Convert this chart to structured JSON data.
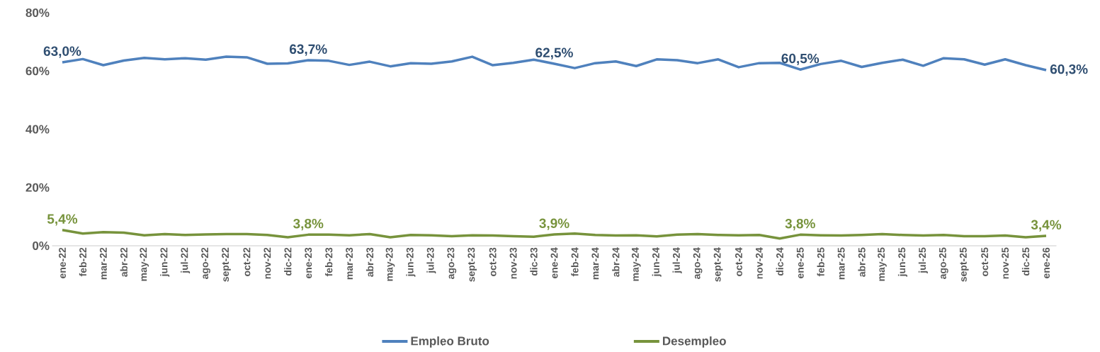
{
  "chart_data": {
    "type": "line",
    "categories": [
      "ene-22",
      "feb-22",
      "mar-22",
      "abr-22",
      "may-22",
      "jun-22",
      "jul-22",
      "ago-22",
      "sept-22",
      "oct-22",
      "nov-22",
      "dic-22",
      "ene-23",
      "feb-23",
      "mar-23",
      "abr-23",
      "may-23",
      "jun-23",
      "jul-23",
      "ago-23",
      "sept-23",
      "oct-23",
      "nov-23",
      "dic-23",
      "ene-24",
      "feb-24",
      "mar-24",
      "abr-24",
      "may-24",
      "jun-24",
      "jul-24",
      "ago-24",
      "sept-24",
      "oct-24",
      "nov-24",
      "dic-24",
      "ene-25",
      "feb-25",
      "mar-25",
      "abr-25",
      "may-25",
      "jun-25",
      "jul-25",
      "ago-25",
      "sept-25",
      "oct-25",
      "nov-25",
      "dic-25",
      "ene-26"
    ],
    "series": [
      {
        "name": "Empleo Bruto",
        "color": "#4f81bd",
        "values": [
          63.0,
          64.1,
          62.0,
          63.6,
          64.5,
          64.0,
          64.4,
          63.9,
          64.9,
          64.7,
          62.5,
          62.6,
          63.7,
          63.5,
          62.1,
          63.2,
          61.6,
          62.7,
          62.5,
          63.3,
          64.9,
          62.0,
          62.8,
          63.9,
          62.5,
          61.0,
          62.7,
          63.3,
          61.7,
          64.0,
          63.7,
          62.7,
          64.0,
          61.3,
          62.7,
          62.8,
          60.5,
          62.4,
          63.5,
          61.4,
          62.8,
          63.9,
          61.8,
          64.4,
          64.0,
          62.2,
          64.0,
          62.0,
          60.3
        ],
        "value_labels": [
          "63,0%",
          null,
          null,
          null,
          null,
          null,
          null,
          null,
          null,
          null,
          null,
          null,
          "63,7%",
          null,
          null,
          null,
          null,
          null,
          null,
          null,
          null,
          null,
          null,
          null,
          "62,5%",
          null,
          null,
          null,
          null,
          null,
          null,
          null,
          null,
          null,
          null,
          null,
          "60,5%",
          null,
          null,
          null,
          null,
          null,
          null,
          null,
          null,
          null,
          null,
          null,
          "60,3%"
        ]
      },
      {
        "name": "Desempleo",
        "color": "#77933c",
        "values": [
          5.4,
          4.2,
          4.7,
          4.5,
          3.6,
          4.0,
          3.7,
          3.9,
          4.0,
          4.0,
          3.7,
          2.9,
          3.8,
          3.8,
          3.6,
          4.0,
          2.9,
          3.7,
          3.6,
          3.3,
          3.6,
          3.5,
          3.3,
          3.1,
          3.9,
          4.2,
          3.7,
          3.5,
          3.6,
          3.2,
          3.8,
          4.0,
          3.7,
          3.6,
          3.7,
          2.5,
          3.8,
          3.6,
          3.5,
          3.7,
          4.0,
          3.7,
          3.5,
          3.7,
          3.3,
          3.3,
          3.5,
          2.9,
          3.4
        ],
        "value_labels": [
          "5,4%",
          null,
          null,
          null,
          null,
          null,
          null,
          null,
          null,
          null,
          null,
          null,
          "3,8%",
          null,
          null,
          null,
          null,
          null,
          null,
          null,
          null,
          null,
          null,
          null,
          "3,9%",
          null,
          null,
          null,
          null,
          null,
          null,
          null,
          null,
          null,
          null,
          null,
          "3,8%",
          null,
          null,
          null,
          null,
          null,
          null,
          null,
          null,
          null,
          null,
          null,
          "3,4%"
        ]
      }
    ],
    "ylim": [
      0,
      80
    ],
    "yticks": [
      {
        "value": 0,
        "label": "0%"
      },
      {
        "value": 20,
        "label": "20%"
      },
      {
        "value": 40,
        "label": "40%"
      },
      {
        "value": 60,
        "label": "60%"
      },
      {
        "value": 80,
        "label": "80%"
      }
    ],
    "legend": "bottom",
    "grid": false,
    "marker": "none",
    "line_style": "solid"
  }
}
